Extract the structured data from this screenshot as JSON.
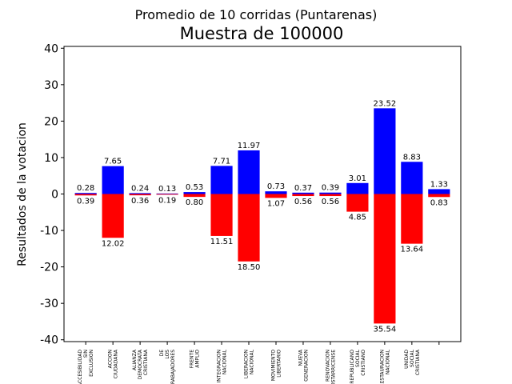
{
  "chart_data": {
    "type": "bar",
    "suptitle": "Promedio de 10 corridas (Puntarenas)",
    "title": "Muestra de 100000",
    "xlabel": "",
    "ylabel": "Resultados de la votacion",
    "ylim": [
      -40.5,
      40.5
    ],
    "yticks": [
      -40,
      -30,
      -20,
      -10,
      0,
      10,
      20,
      30,
      40
    ],
    "grid": false,
    "categories": [
      [
        "ACCESIBILIDAD",
        "SIN",
        "EXCLUSION"
      ],
      [
        "ACCION",
        "CIUDADANA"
      ],
      [
        "ALIANZA",
        "DEMOCRATA",
        "CRISTIANA"
      ],
      [
        "DE",
        "LOS",
        "TRABAJADORES"
      ],
      [
        "FRENTE",
        "AMPLIO"
      ],
      [
        "INTEGRACION",
        "NACIONAL"
      ],
      [
        "LIBERACION",
        "NACIONAL"
      ],
      [
        "MOVIMIENTO",
        "LIBERTARIO"
      ],
      [
        "NUEVA",
        "GENERACION"
      ],
      [
        "RENOVACION",
        "COSTARRICENSE"
      ],
      [
        "REPUBLICANO",
        "SOCIAL",
        "CRISTIANO"
      ],
      [
        "RESTAURACION",
        "NACIONAL"
      ],
      [
        "UNIDAD",
        "SOCIAL",
        "CRISTIANA"
      ],
      [
        ""
      ]
    ],
    "series": [
      {
        "color": "#0000ff",
        "values": [
          0.28,
          7.65,
          0.24,
          0.13,
          0.53,
          7.71,
          11.97,
          0.73,
          0.37,
          0.39,
          3.01,
          23.52,
          8.83,
          1.33
        ],
        "labels": [
          "0.28",
          "7.65",
          "0.24",
          "0.13",
          "0.53",
          "7.71",
          "11.97",
          "0.73",
          "0.37",
          "0.39",
          "3.01",
          "23.52",
          "8.83",
          "1.33"
        ]
      },
      {
        "color": "#ff0000",
        "values": [
          -0.39,
          -12.02,
          -0.36,
          -0.19,
          -0.8,
          -11.51,
          -18.5,
          -1.07,
          -0.56,
          -0.56,
          -4.85,
          -35.54,
          -13.64,
          -0.83
        ],
        "labels": [
          "0.39",
          "12.02",
          "0.36",
          "0.19",
          "0.80",
          "11.51",
          "18.50",
          "1.07",
          "0.56",
          "0.56",
          "4.85",
          "35.54",
          "13.64",
          "0.83"
        ]
      }
    ]
  }
}
